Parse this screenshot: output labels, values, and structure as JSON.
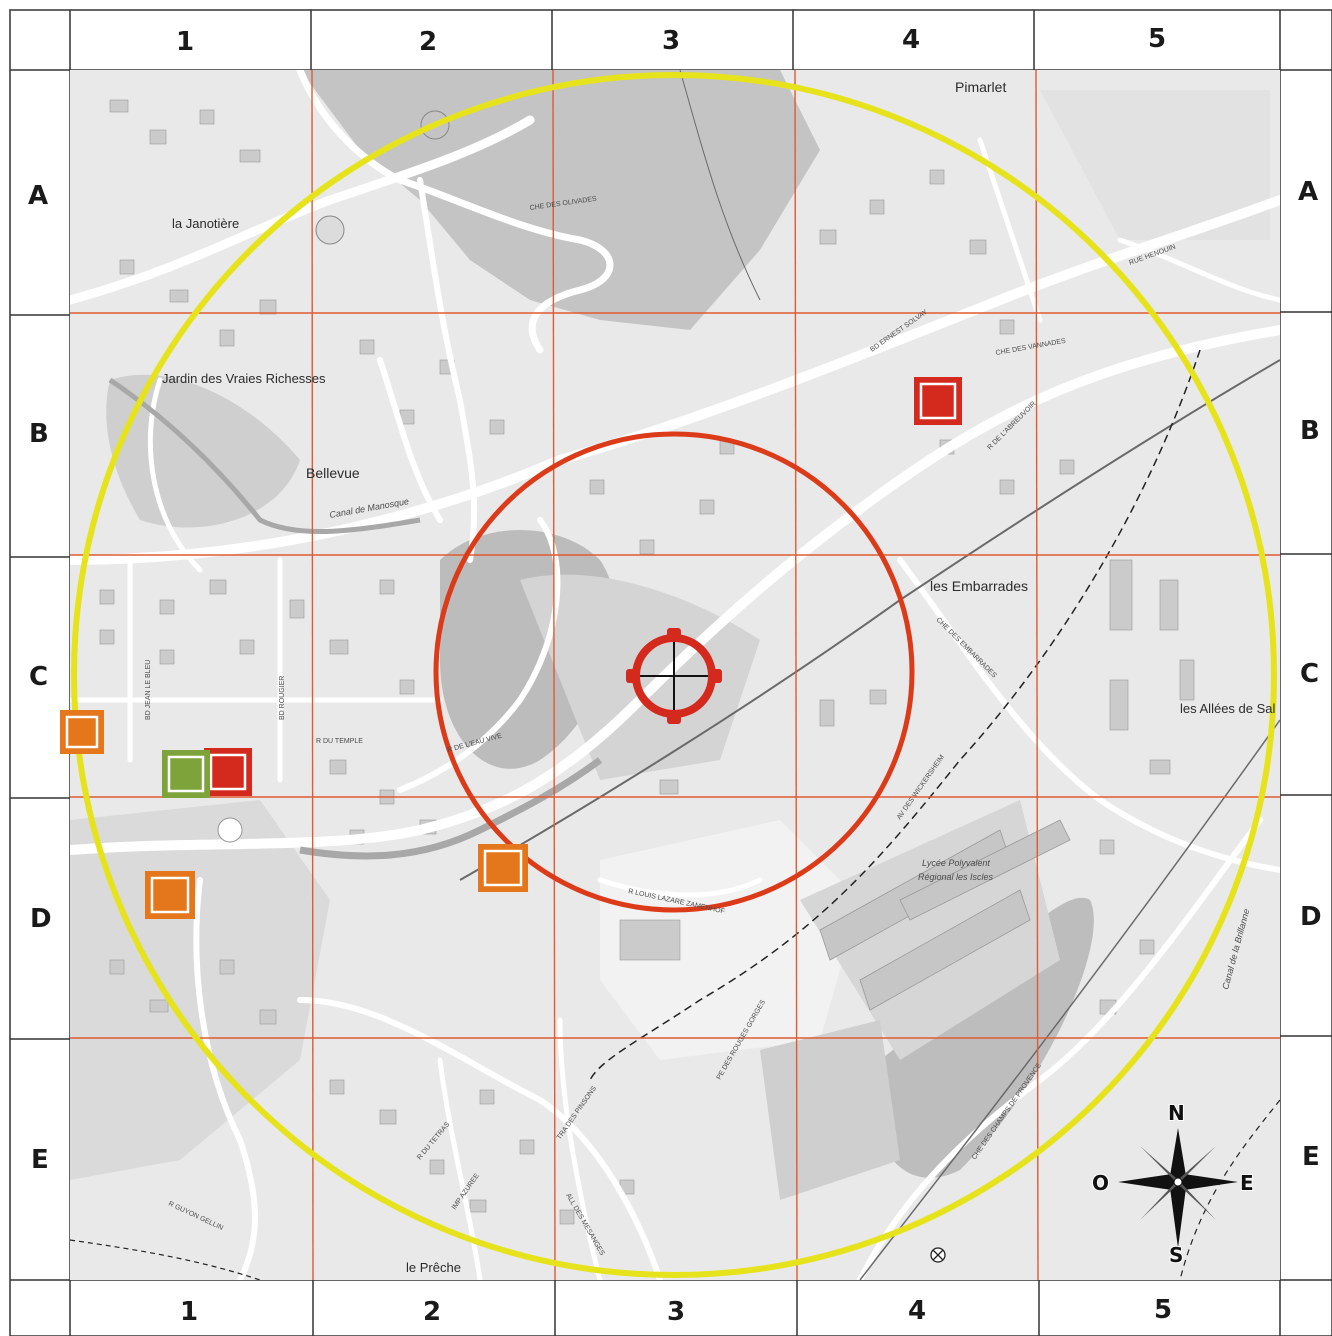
{
  "grid": {
    "columns": [
      "1",
      "2",
      "3",
      "4",
      "5"
    ],
    "rows": [
      "A",
      "B",
      "C",
      "D",
      "E"
    ]
  },
  "places": {
    "pimarlet": "Pimarlet",
    "la_janotiere": "la Janotière",
    "jardin": "Jardin des Vraies Richesses",
    "bellevue": "Bellevue",
    "les_embarrades": "les Embarrades",
    "les_allees": "les Allées de Sal",
    "lycee_line1": "Lycée Polyvalent",
    "lycee_line2": "Régional les Iscles",
    "le_preche": "le Prêche"
  },
  "streets": {
    "che_des_olivades": "CHE DES OLIVADES",
    "bd_ernest_solvay": "BD ERNEST SOLVAY",
    "che_des_vannades": "CHE DES VANNADES",
    "r_de_l_abreuvoir": "R DE L'ABREUVOIR",
    "rue_henouin": "RUE HENOUIN",
    "che_des_embarrades": "CHE DES EMBARRADES",
    "av_wickersheim": "AV DES WICKERSHEIM",
    "r_louis_lazare": "R LOUIS LAZARE ZAMENHOF",
    "bd_jean_le_bleu": "BD JEAN LE BLEU",
    "bd_rougier": "BD ROUGIER",
    "r_du_temple": "R DU TEMPLE",
    "r_de_l_eau_vive": "R DE L'EAU VIVE",
    "canal_de_manosque": "Canal de Manosque",
    "canal_de_la_brillanne": "Canal de la Brillanne",
    "pe_des_rouges_gorges": "PE DES ROUGES GORGES",
    "che_des_champs": "CHE DES CHAMPS DE PROVENCE",
    "r_du_tetras": "R DU TETRAS",
    "r_guyon_gellin": "R GUYON GELLIN",
    "che_des_melanges": "ALL DES MESANGES",
    "tra_des_pinsons": "TRA DES PINSONS",
    "imp_azuree": "IMP AZUREE"
  },
  "compass": {
    "north": "N",
    "east": "E",
    "south": "S",
    "west": "O"
  },
  "markers": [
    {
      "id": "red-b4",
      "cell": "B4",
      "color": "#d42a1e"
    },
    {
      "id": "orange-c1",
      "cell": "C1",
      "color": "#e4761c"
    },
    {
      "id": "green-c1",
      "cell": "C1",
      "color": "#7da33a"
    },
    {
      "id": "red-c1",
      "cell": "C1",
      "color": "#d42a1e"
    },
    {
      "id": "orange-d1",
      "cell": "D1",
      "color": "#e4761c"
    },
    {
      "id": "orange-d2",
      "cell": "D2",
      "color": "#e4761c"
    }
  ],
  "target": {
    "cell": "C3",
    "color": "#d42a1e"
  },
  "colors": {
    "outer_ring": "#e6e31c",
    "inner_ring": "#dc3b1a",
    "subgrid": "#e05a32",
    "map_bg": "#e9e9e9",
    "forest": "#c2c2c2",
    "road": "#ffffff"
  }
}
